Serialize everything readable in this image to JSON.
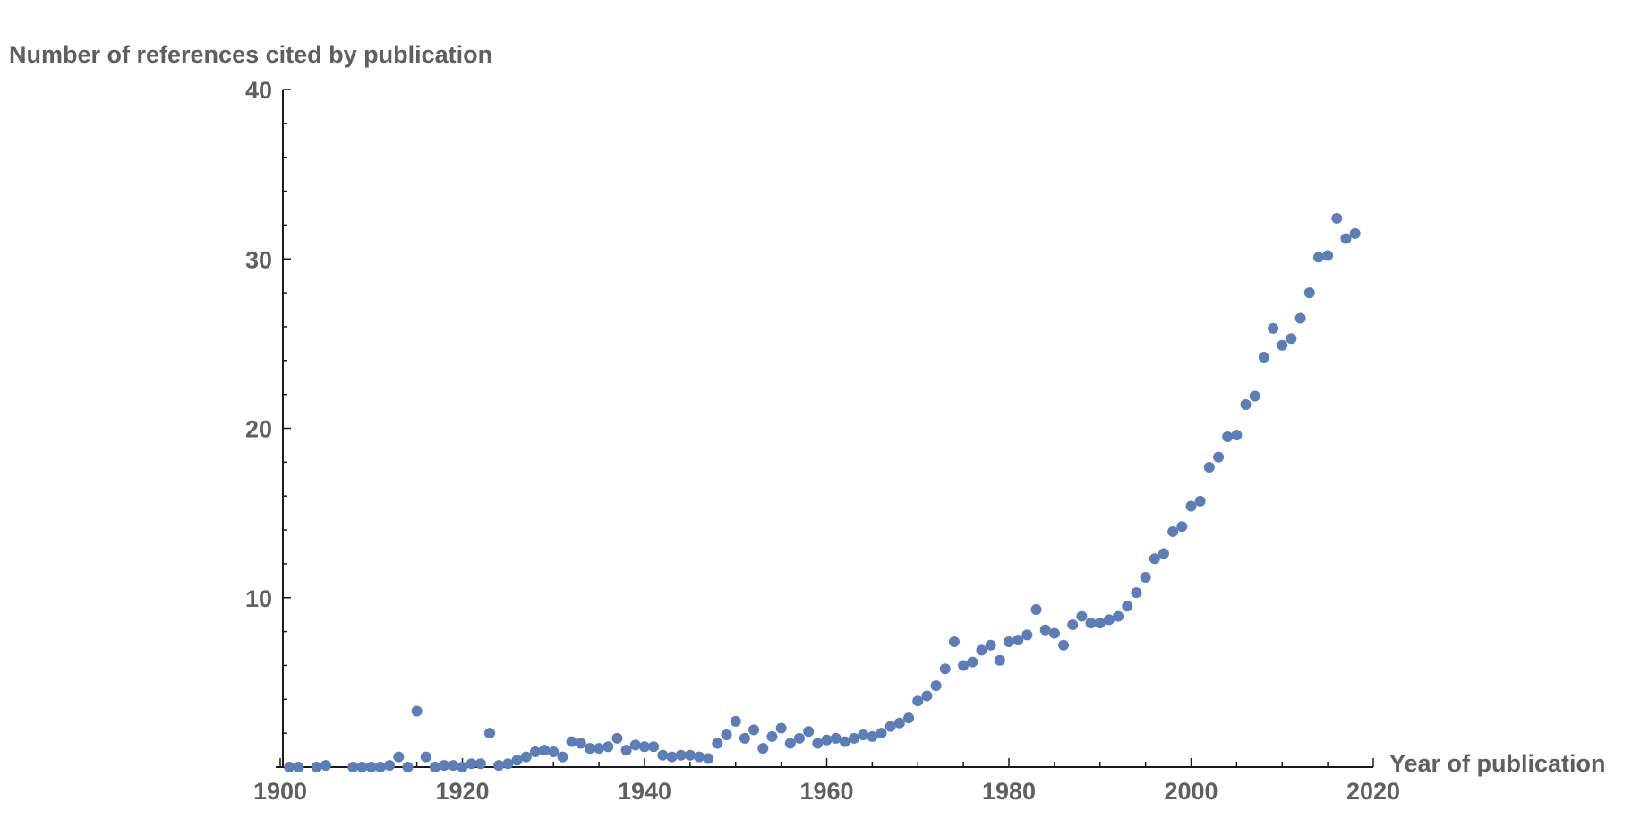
{
  "chart_data": {
    "type": "scatter",
    "title": "",
    "xlabel": "Year of publication",
    "ylabel": "Number of references cited by publication",
    "xlim": [
      1900,
      2020
    ],
    "ylim": [
      0,
      40
    ],
    "x_ticks": [
      1900,
      1920,
      1940,
      1960,
      1980,
      2000,
      2020
    ],
    "y_ticks": [
      10,
      20,
      30,
      40
    ],
    "grid": false,
    "legend": "none",
    "marker_color": "#5b7db8",
    "series": [
      {
        "name": "references",
        "x": [
          1901,
          1902,
          1904,
          1905,
          1908,
          1909,
          1910,
          1911,
          1912,
          1913,
          1914,
          1915,
          1916,
          1917,
          1918,
          1919,
          1920,
          1921,
          1922,
          1923,
          1924,
          1925,
          1926,
          1927,
          1928,
          1929,
          1930,
          1931,
          1932,
          1933,
          1934,
          1935,
          1936,
          1937,
          1938,
          1939,
          1940,
          1941,
          1942,
          1943,
          1944,
          1945,
          1946,
          1947,
          1948,
          1949,
          1950,
          1951,
          1952,
          1953,
          1954,
          1955,
          1956,
          1957,
          1958,
          1959,
          1960,
          1961,
          1962,
          1963,
          1964,
          1965,
          1966,
          1967,
          1968,
          1969,
          1970,
          1971,
          1972,
          1973,
          1974,
          1975,
          1976,
          1977,
          1978,
          1979,
          1980,
          1981,
          1982,
          1983,
          1984,
          1985,
          1986,
          1987,
          1988,
          1989,
          1990,
          1991,
          1992,
          1993,
          1994,
          1995,
          1996,
          1997,
          1998,
          1999,
          2000,
          2001,
          2002,
          2003,
          2004,
          2005,
          2006,
          2007,
          2008,
          2009,
          2010,
          2011,
          2012,
          2013,
          2014,
          2015,
          2016,
          2017,
          2018
        ],
        "y": [
          0,
          0,
          0,
          0.1,
          0,
          0,
          0,
          0,
          0.1,
          0.6,
          0,
          3.3,
          0.6,
          0,
          0.1,
          0.1,
          0,
          0.2,
          0.2,
          2.0,
          0.1,
          0.2,
          0.4,
          0.6,
          0.9,
          1.0,
          0.9,
          0.6,
          1.5,
          1.4,
          1.1,
          1.1,
          1.2,
          1.7,
          1.0,
          1.3,
          1.2,
          1.2,
          0.7,
          0.6,
          0.7,
          0.7,
          0.6,
          0.5,
          1.4,
          1.9,
          2.7,
          1.7,
          2.2,
          1.1,
          1.8,
          2.3,
          1.4,
          1.7,
          2.1,
          1.4,
          1.6,
          1.7,
          1.5,
          1.7,
          1.9,
          1.8,
          2.0,
          2.4,
          2.6,
          2.9,
          3.9,
          4.2,
          4.8,
          5.8,
          7.4,
          6.0,
          6.2,
          6.9,
          7.2,
          6.3,
          7.4,
          7.5,
          7.8,
          9.3,
          8.1,
          7.9,
          7.2,
          8.4,
          8.9,
          8.5,
          8.5,
          8.7,
          8.9,
          9.5,
          10.3,
          11.2,
          12.3,
          12.6,
          13.9,
          14.2,
          15.4,
          15.7,
          17.7,
          18.3,
          19.5,
          19.6,
          21.4,
          21.9,
          24.2,
          25.9,
          24.9,
          25.3,
          26.5,
          28.0,
          30.1,
          30.2,
          32.4,
          31.2,
          31.5
        ]
      }
    ]
  }
}
